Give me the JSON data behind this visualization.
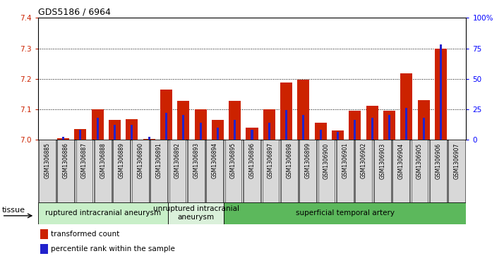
{
  "title": "GDS5186 / 6964",
  "samples": [
    "GSM1306885",
    "GSM1306886",
    "GSM1306887",
    "GSM1306888",
    "GSM1306889",
    "GSM1306890",
    "GSM1306891",
    "GSM1306892",
    "GSM1306893",
    "GSM1306894",
    "GSM1306895",
    "GSM1306896",
    "GSM1306897",
    "GSM1306898",
    "GSM1306899",
    "GSM1306900",
    "GSM1306901",
    "GSM1306902",
    "GSM1306903",
    "GSM1306904",
    "GSM1306905",
    "GSM1306906",
    "GSM1306907"
  ],
  "transformed_count": [
    7.005,
    7.035,
    7.1,
    7.065,
    7.068,
    7.002,
    7.165,
    7.128,
    7.1,
    7.065,
    7.128,
    7.04,
    7.1,
    7.188,
    7.197,
    7.055,
    7.03,
    7.095,
    7.11,
    7.095,
    7.218,
    7.13,
    7.3
  ],
  "percentile_rank": [
    2,
    8,
    18,
    12,
    12,
    2,
    22,
    20,
    14,
    10,
    16,
    8,
    14,
    24,
    20,
    8,
    6,
    16,
    18,
    20,
    26,
    18,
    78
  ],
  "ylim_left": [
    7.0,
    7.4
  ],
  "ylim_right": [
    0,
    100
  ],
  "yticks_left": [
    7.0,
    7.1,
    7.2,
    7.3,
    7.4
  ],
  "yticks_right": [
    0,
    25,
    50,
    75,
    100
  ],
  "ytick_labels_right": [
    "0",
    "25",
    "50",
    "75",
    "100%"
  ],
  "groups": [
    {
      "label": "ruptured intracranial aneurysm",
      "start": 0,
      "end": 6,
      "color": "#c8efc8"
    },
    {
      "label": "unruptured intracranial\naneurysm",
      "start": 7,
      "end": 9,
      "color": "#daf0da"
    },
    {
      "label": "superficial temporal artery",
      "start": 10,
      "end": 22,
      "color": "#5cb85c"
    }
  ],
  "bar_color_red": "#cc2200",
  "bar_color_blue": "#2222cc",
  "tick_label_bg": "#d8d8d8",
  "plot_bg": "#ffffff",
  "tissue_label": "tissue",
  "legend_items": [
    "transformed count",
    "percentile rank within the sample"
  ]
}
